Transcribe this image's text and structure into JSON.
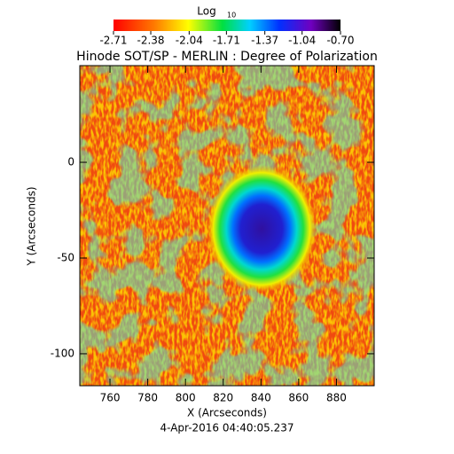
{
  "chart_data": {
    "type": "image",
    "title": "Hinode SOT/SP - MERLIN : Degree of Polarization",
    "colorbar_label": "Log",
    "colorbar_label_subscript": "10",
    "colorbar_lim": [
      -2.71,
      -0.7
    ],
    "colorbar_ticks": [
      -2.71,
      -2.38,
      -2.04,
      -1.71,
      -1.37,
      -1.04,
      {
        "value": -0.7,
        "label": "-0.70"
      }
    ],
    "x_label": "X (Arcseconds)",
    "y_label": "Y (Arcseconds)",
    "date": "4-Apr-2016 04:40:05.237",
    "xlim": [
      744,
      900
    ],
    "ylim": [
      -116.7,
      50.5
    ],
    "xticks": [
      760,
      780,
      800,
      820,
      840,
      860,
      880
    ],
    "yticks": [
      -100,
      -50,
      0
    ]
  }
}
